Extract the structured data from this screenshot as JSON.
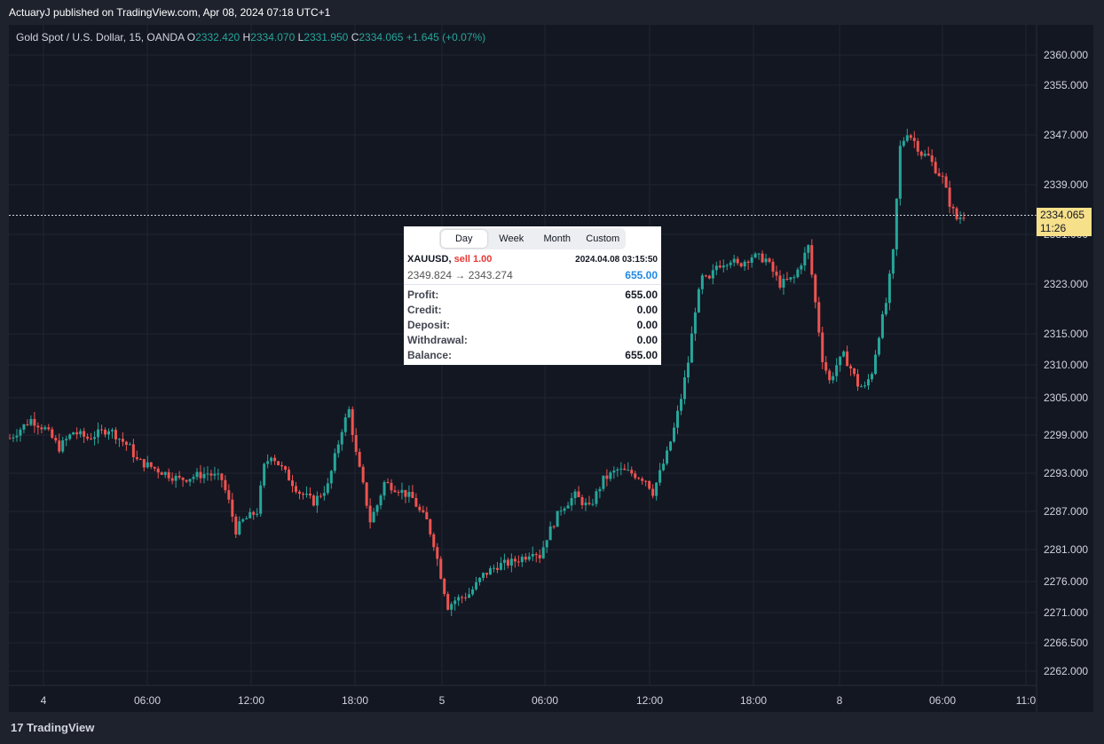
{
  "header": {
    "published": "ActuaryJ published on TradingView.com, Apr 08, 2024 07:18 UTC+1"
  },
  "legend": {
    "symbol": "Gold Spot / U.S. Dollar, 15, OANDA",
    "o_key": "O",
    "o": "2332.420",
    "h_key": "H",
    "h": "2334.070",
    "l_key": "L",
    "l": "2331.950",
    "c_key": "C",
    "c": "2334.065",
    "change": "+1.645 (+0.07%)"
  },
  "price_tag": {
    "price": "2334.065",
    "countdown": "11:26"
  },
  "popup": {
    "tabs": [
      "Day",
      "Week",
      "Month",
      "Custom"
    ],
    "active_tab": "Day",
    "symbol": "XAUUSD,",
    "side": "sell 1.00",
    "datetime": "2024.04.08 03:15:50",
    "route": "2349.824 → 2343.274",
    "route_pnl": "655.00",
    "rows": [
      {
        "label": "Profit:",
        "value": "655.00"
      },
      {
        "label": "Credit:",
        "value": "0.00"
      },
      {
        "label": "Deposit:",
        "value": "0.00"
      },
      {
        "label": "Withdrawal:",
        "value": "0.00"
      },
      {
        "label": "Balance:",
        "value": "655.00"
      }
    ]
  },
  "footer": {
    "brand": "TradingView"
  },
  "colors": {
    "up": "#26a69a",
    "down": "#ef5350",
    "background": "#131722",
    "grid": "#1f2433"
  },
  "chart_data": {
    "type": "candlestick",
    "title": "Gold Spot / U.S. Dollar, 15, OANDA",
    "y_ticks": [
      "2360.000",
      "2355.000",
      "2347.000",
      "2339.000",
      "2331.000",
      "2323.000",
      "2315.000",
      "2310.000",
      "2305.000",
      "2299.000",
      "2293.000",
      "2287.000",
      "2281.000",
      "2276.000",
      "2271.000",
      "2266.500",
      "2262.000"
    ],
    "x_ticks": [
      "4",
      "06:00",
      "12:00",
      "18:00",
      "5",
      "06:00",
      "12:00",
      "18:00",
      "8",
      "06:00",
      "11:0"
    ],
    "last_price": 2334.065,
    "close_path": [
      [
        0,
        2298.5
      ],
      [
        6,
        2301.5
      ],
      [
        10,
        2300.0
      ],
      [
        12,
        2298.5
      ],
      [
        14,
        2297.0
      ],
      [
        18,
        2299.5
      ],
      [
        22,
        2298.5
      ],
      [
        28,
        2300.0
      ],
      [
        34,
        2297.0
      ],
      [
        36,
        2295.0
      ],
      [
        40,
        2294.0
      ],
      [
        44,
        2293.0
      ],
      [
        48,
        2292.0
      ],
      [
        52,
        2292.5
      ],
      [
        56,
        2293.0
      ],
      [
        60,
        2292.0
      ],
      [
        62,
        2288.5
      ],
      [
        64,
        2284.0
      ],
      [
        66,
        2285.5
      ],
      [
        70,
        2287.0
      ],
      [
        72,
        2294.0
      ],
      [
        74,
        2296.0
      ],
      [
        78,
        2293.0
      ],
      [
        82,
        2290.0
      ],
      [
        86,
        2288.5
      ],
      [
        90,
        2291.0
      ],
      [
        94,
        2300.0
      ],
      [
        96,
        2303.0
      ],
      [
        98,
        2296.0
      ],
      [
        100,
        2291.0
      ],
      [
        102,
        2285.5
      ],
      [
        104,
        2288.0
      ],
      [
        106,
        2291.5
      ],
      [
        110,
        2290.5
      ],
      [
        114,
        2289.0
      ],
      [
        116,
        2287.0
      ],
      [
        118,
        2285.5
      ],
      [
        120,
        2282.0
      ],
      [
        122,
        2277.0
      ],
      [
        124,
        2272.0
      ],
      [
        126,
        2273.0
      ],
      [
        130,
        2274.0
      ],
      [
        134,
        2277.0
      ],
      [
        138,
        2278.5
      ],
      [
        142,
        2279.0
      ],
      [
        146,
        2280.0
      ],
      [
        148,
        2281.0
      ],
      [
        150,
        2280.0
      ],
      [
        152,
        2283.0
      ],
      [
        156,
        2287.5
      ],
      [
        160,
        2289.5
      ],
      [
        164,
        2287.5
      ],
      [
        168,
        2292.0
      ],
      [
        172,
        2293.5
      ],
      [
        176,
        2293.0
      ],
      [
        180,
        2292.0
      ],
      [
        182,
        2290.0
      ],
      [
        184,
        2293.0
      ],
      [
        186,
        2296.0
      ],
      [
        188,
        2300.0
      ],
      [
        190,
        2305.0
      ],
      [
        192,
        2310.5
      ],
      [
        194,
        2319.0
      ],
      [
        196,
        2324.0
      ],
      [
        198,
        2323.5
      ],
      [
        200,
        2326.0
      ],
      [
        204,
        2327.0
      ],
      [
        206,
        2326.0
      ],
      [
        210,
        2327.5
      ],
      [
        214,
        2327.0
      ],
      [
        216,
        2325.0
      ],
      [
        218,
        2323.0
      ],
      [
        222,
        2324.0
      ],
      [
        224,
        2326.5
      ],
      [
        226,
        2329.0
      ],
      [
        228,
        2320.0
      ],
      [
        230,
        2311.0
      ],
      [
        232,
        2307.5
      ],
      [
        234,
        2310.0
      ],
      [
        236,
        2311.5
      ],
      [
        238,
        2309.5
      ],
      [
        240,
        2307.0
      ],
      [
        242,
        2306.5
      ],
      [
        244,
        2309.0
      ],
      [
        246,
        2315.0
      ],
      [
        248,
        2320.0
      ],
      [
        250,
        2328.0
      ],
      [
        252,
        2345.0
      ],
      [
        254,
        2347.5
      ],
      [
        256,
        2346.0
      ],
      [
        258,
        2344.0
      ],
      [
        260,
        2343.5
      ],
      [
        262,
        2341.5
      ],
      [
        264,
        2340.0
      ],
      [
        266,
        2336.0
      ],
      [
        268,
        2333.5
      ],
      [
        270,
        2334.065
      ]
    ]
  }
}
